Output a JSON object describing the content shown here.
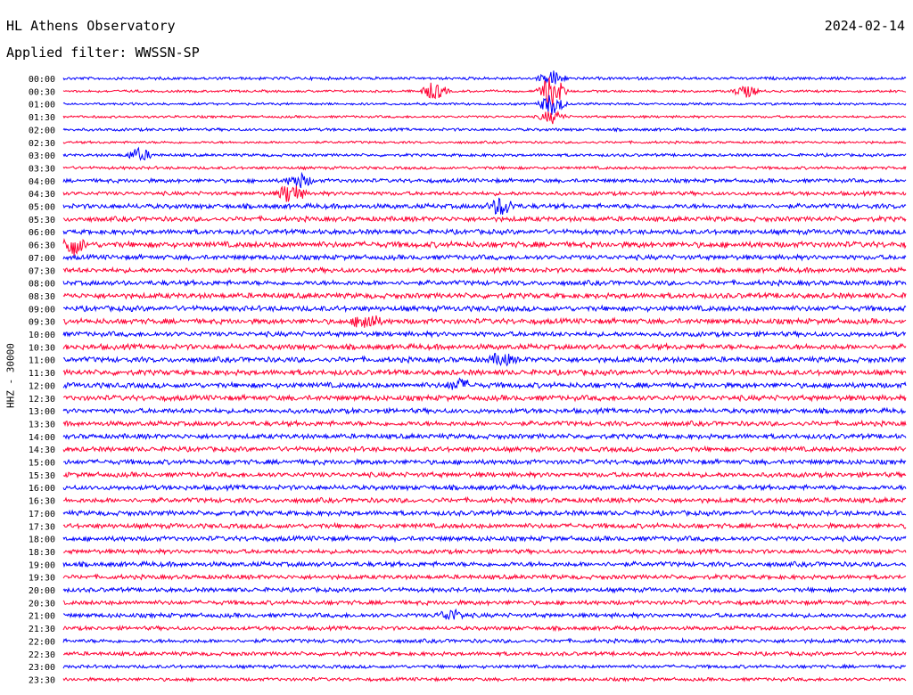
{
  "header": {
    "station": "HL Athens Observatory",
    "date": "2024-02-14",
    "filter": "Applied filter: WWSSN-SP"
  },
  "side_label": "HHZ - 30000",
  "colors": {
    "even_trace": "#0000ff",
    "odd_trace": "#ff0033",
    "text": "#000000"
  },
  "chart_data": {
    "type": "line",
    "title": "HL Athens Observatory",
    "subtitle": "Applied filter: WWSSN-SP",
    "ylabel": "HHZ - 30000",
    "grid": false,
    "row_labels": [
      "00:00",
      "00:30",
      "01:00",
      "01:30",
      "02:00",
      "02:30",
      "03:00",
      "03:30",
      "04:00",
      "04:30",
      "05:00",
      "05:30",
      "06:00",
      "06:30",
      "07:00",
      "07:30",
      "08:00",
      "08:30",
      "09:00",
      "09:30",
      "10:00",
      "10:30",
      "11:00",
      "11:30",
      "12:00",
      "12:30",
      "13:00",
      "13:30",
      "14:00",
      "14:30",
      "15:00",
      "15:30",
      "16:00",
      "16:30",
      "17:00",
      "17:30",
      "18:00",
      "18:30",
      "19:00",
      "19:30",
      "20:00",
      "20:30",
      "21:00",
      "21:30",
      "22:00",
      "22:30",
      "23:00",
      "23:30"
    ],
    "noise_level": [
      0.6,
      0.5,
      0.5,
      0.5,
      0.6,
      0.5,
      0.6,
      0.6,
      0.8,
      0.8,
      1.0,
      1.0,
      1.0,
      1.2,
      1.0,
      1.0,
      1.0,
      1.1,
      1.1,
      1.1,
      1.0,
      1.1,
      1.1,
      1.1,
      1.1,
      1.1,
      1.0,
      1.0,
      1.0,
      1.0,
      1.0,
      1.0,
      1.0,
      1.0,
      1.0,
      1.0,
      1.0,
      0.9,
      1.0,
      0.9,
      0.9,
      0.9,
      0.9,
      0.8,
      0.8,
      0.8,
      0.7,
      0.7
    ],
    "events": [
      {
        "row": 1,
        "t": 0.44,
        "amp": 2.5
      },
      {
        "row": 1,
        "t": 0.58,
        "amp": 4.5
      },
      {
        "row": 1,
        "t": 0.81,
        "amp": 1.6
      },
      {
        "row": 0,
        "t": 0.58,
        "amp": 2.2
      },
      {
        "row": 2,
        "t": 0.58,
        "amp": 3.0
      },
      {
        "row": 3,
        "t": 0.58,
        "amp": 1.8
      },
      {
        "row": 6,
        "t": 0.09,
        "amp": 1.8
      },
      {
        "row": 9,
        "t": 0.27,
        "amp": 3.0
      },
      {
        "row": 8,
        "t": 0.28,
        "amp": 2.0
      },
      {
        "row": 10,
        "t": 0.52,
        "amp": 2.5
      },
      {
        "row": 13,
        "t": 0.01,
        "amp": 3.0
      },
      {
        "row": 19,
        "t": 0.36,
        "amp": 2.5
      },
      {
        "row": 22,
        "t": 0.52,
        "amp": 1.6
      },
      {
        "row": 24,
        "t": 0.47,
        "amp": 1.5
      },
      {
        "row": 42,
        "t": 0.46,
        "amp": 1.6
      }
    ]
  }
}
